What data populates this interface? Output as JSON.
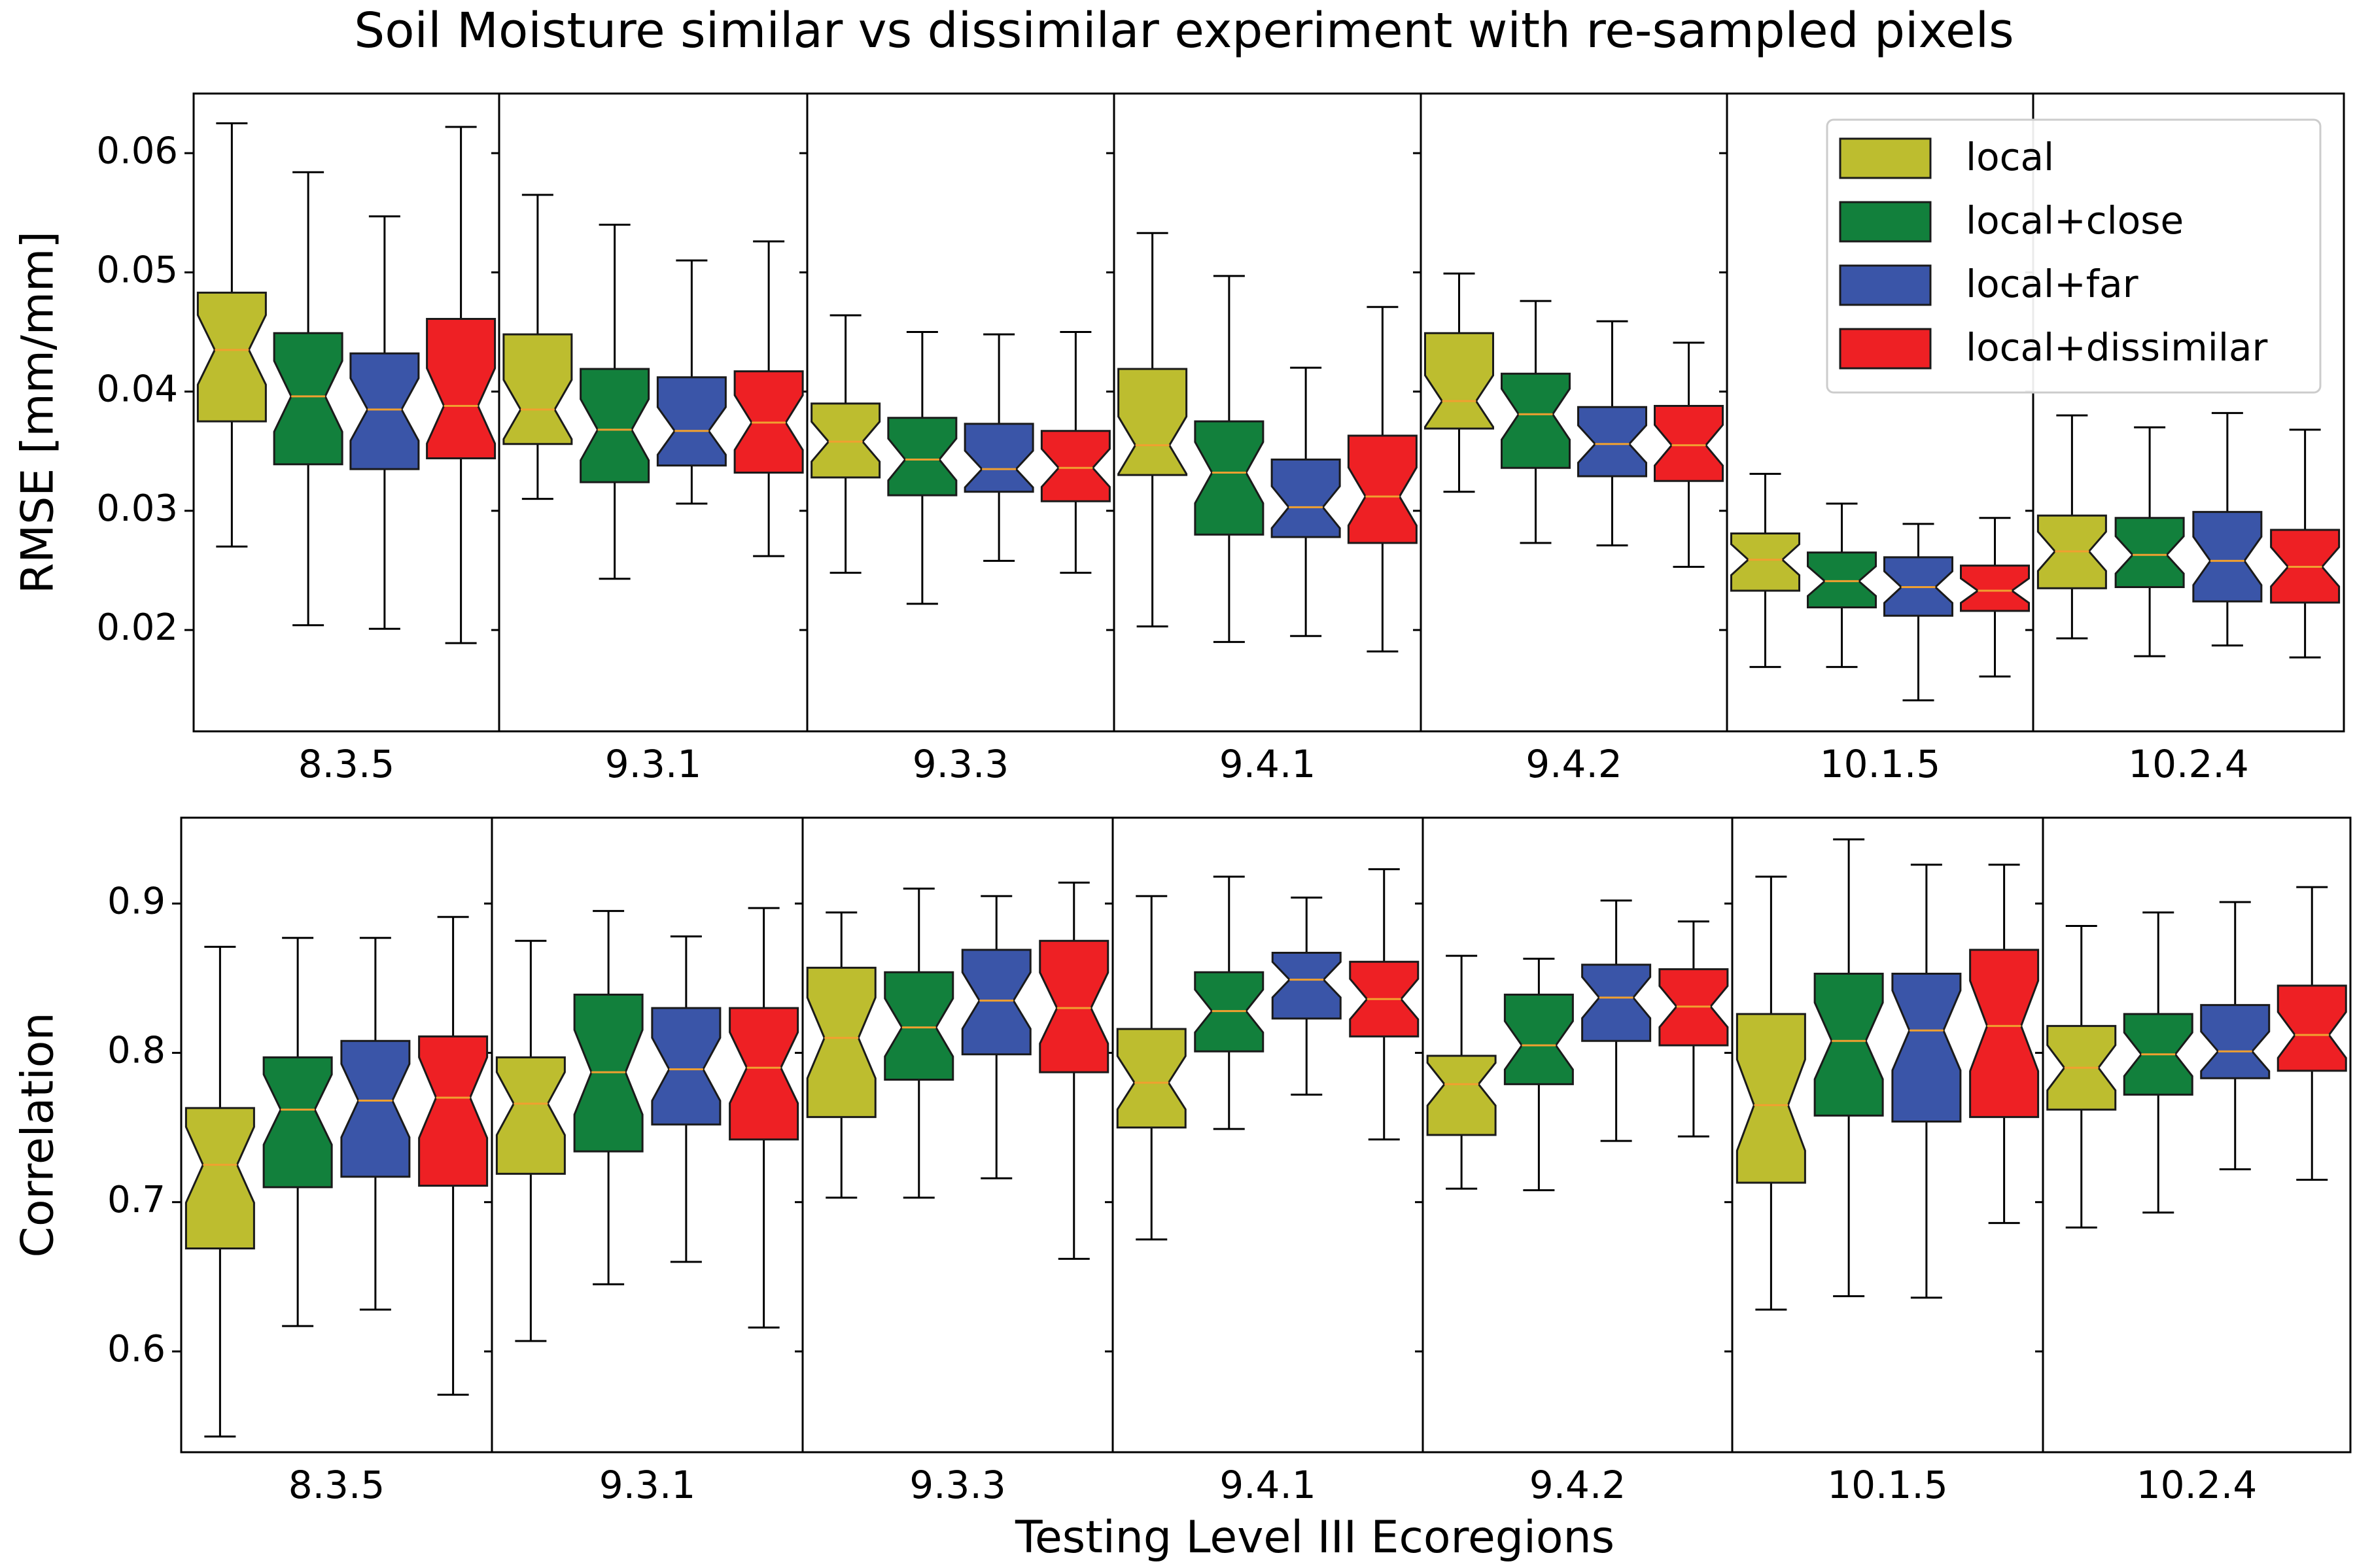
{
  "title": "Soil Moisture similar vs dissimilar experiment with re-sampled pixels",
  "xlabel": "Testing Level III Ecoregions",
  "legend": {
    "entries": [
      {
        "name": "local",
        "color": "#bdbd2f"
      },
      {
        "name": "local+close",
        "color": "#12803c"
      },
      {
        "name": "local+far",
        "color": "#3a55a8"
      },
      {
        "name": "local+dissimilar",
        "color": "#ee2024"
      }
    ]
  },
  "median_color": "#f0a030",
  "chart_data": [
    {
      "type": "boxplot",
      "ylabel": "RMSE [mm/mm]",
      "ylim": [
        0.0115,
        0.065
      ],
      "yticks": [
        0.02,
        0.03,
        0.04,
        0.05,
        0.06
      ],
      "ytick_labels": [
        "0.02",
        "0.03",
        "0.04",
        "0.05",
        "0.06"
      ],
      "categories": [
        "8.3.5",
        "9.3.1",
        "9.3.3",
        "9.4.1",
        "9.4.2",
        "10.1.5",
        "10.2.4"
      ],
      "series": [
        {
          "name": "local",
          "boxes": [
            {
              "min": 0.027,
              "q1": 0.0375,
              "median": 0.0435,
              "q3": 0.0483,
              "max": 0.0625
            },
            {
              "min": 0.031,
              "q1": 0.0356,
              "median": 0.0385,
              "q3": 0.0448,
              "max": 0.0565
            },
            {
              "min": 0.0248,
              "q1": 0.0328,
              "median": 0.0358,
              "q3": 0.039,
              "max": 0.0464
            },
            {
              "min": 0.0203,
              "q1": 0.033,
              "median": 0.0355,
              "q3": 0.0419,
              "max": 0.0533
            },
            {
              "min": 0.0316,
              "q1": 0.0369,
              "median": 0.0392,
              "q3": 0.0449,
              "max": 0.0499
            },
            {
              "min": 0.0169,
              "q1": 0.0233,
              "median": 0.0259,
              "q3": 0.0281,
              "max": 0.0331
            },
            {
              "min": 0.0193,
              "q1": 0.0235,
              "median": 0.0266,
              "q3": 0.0296,
              "max": 0.038
            }
          ]
        },
        {
          "name": "local+close",
          "boxes": [
            {
              "min": 0.0204,
              "q1": 0.0339,
              "median": 0.0396,
              "q3": 0.0449,
              "max": 0.0584
            },
            {
              "min": 0.0243,
              "q1": 0.0324,
              "median": 0.0368,
              "q3": 0.0419,
              "max": 0.054
            },
            {
              "min": 0.0222,
              "q1": 0.0313,
              "median": 0.0343,
              "q3": 0.0378,
              "max": 0.045
            },
            {
              "min": 0.019,
              "q1": 0.028,
              "median": 0.0332,
              "q3": 0.0375,
              "max": 0.0497
            },
            {
              "min": 0.0273,
              "q1": 0.0336,
              "median": 0.0381,
              "q3": 0.0415,
              "max": 0.0476
            },
            {
              "min": 0.0169,
              "q1": 0.0219,
              "median": 0.0241,
              "q3": 0.0265,
              "max": 0.0306
            },
            {
              "min": 0.0178,
              "q1": 0.0236,
              "median": 0.0263,
              "q3": 0.0294,
              "max": 0.037
            }
          ]
        },
        {
          "name": "local+far",
          "boxes": [
            {
              "min": 0.0201,
              "q1": 0.0335,
              "median": 0.0385,
              "q3": 0.0432,
              "max": 0.0547
            },
            {
              "min": 0.0306,
              "q1": 0.0338,
              "median": 0.0367,
              "q3": 0.0412,
              "max": 0.051
            },
            {
              "min": 0.0258,
              "q1": 0.0316,
              "median": 0.0335,
              "q3": 0.0373,
              "max": 0.0448
            },
            {
              "min": 0.0195,
              "q1": 0.0278,
              "median": 0.0303,
              "q3": 0.0343,
              "max": 0.042
            },
            {
              "min": 0.0271,
              "q1": 0.0329,
              "median": 0.0356,
              "q3": 0.0387,
              "max": 0.0459
            },
            {
              "min": 0.0141,
              "q1": 0.0212,
              "median": 0.0236,
              "q3": 0.0261,
              "max": 0.0289
            },
            {
              "min": 0.0187,
              "q1": 0.0224,
              "median": 0.0258,
              "q3": 0.0299,
              "max": 0.0382
            }
          ]
        },
        {
          "name": "local+dissimilar",
          "boxes": [
            {
              "min": 0.0189,
              "q1": 0.0344,
              "median": 0.0388,
              "q3": 0.0461,
              "max": 0.0622
            },
            {
              "min": 0.0262,
              "q1": 0.0332,
              "median": 0.0374,
              "q3": 0.0417,
              "max": 0.0526
            },
            {
              "min": 0.0248,
              "q1": 0.0308,
              "median": 0.0336,
              "q3": 0.0367,
              "max": 0.045
            },
            {
              "min": 0.0182,
              "q1": 0.0273,
              "median": 0.0312,
              "q3": 0.0363,
              "max": 0.0471
            },
            {
              "min": 0.0253,
              "q1": 0.0325,
              "median": 0.0355,
              "q3": 0.0388,
              "max": 0.0441
            },
            {
              "min": 0.0161,
              "q1": 0.0216,
              "median": 0.0233,
              "q3": 0.0254,
              "max": 0.0294
            },
            {
              "min": 0.0177,
              "q1": 0.0223,
              "median": 0.0253,
              "q3": 0.0284,
              "max": 0.0368
            }
          ]
        }
      ]
    },
    {
      "type": "boxplot",
      "ylabel": "Correlation",
      "ylim": [
        0.5325,
        0.9575
      ],
      "yticks": [
        0.6,
        0.7,
        0.8,
        0.9
      ],
      "ytick_labels": [
        "0.6",
        "0.7",
        "0.8",
        "0.9"
      ],
      "categories": [
        "8.3.5",
        "9.3.1",
        "9.3.3",
        "9.4.1",
        "9.4.2",
        "10.1.5",
        "10.2.4"
      ],
      "series": [
        {
          "name": "local",
          "boxes": [
            {
              "min": 0.543,
              "q1": 0.669,
              "median": 0.725,
              "q3": 0.763,
              "max": 0.871
            },
            {
              "min": 0.607,
              "q1": 0.719,
              "median": 0.766,
              "q3": 0.797,
              "max": 0.875
            },
            {
              "min": 0.703,
              "q1": 0.757,
              "median": 0.81,
              "q3": 0.857,
              "max": 0.894
            },
            {
              "min": 0.675,
              "q1": 0.75,
              "median": 0.78,
              "q3": 0.816,
              "max": 0.905
            },
            {
              "min": 0.709,
              "q1": 0.745,
              "median": 0.779,
              "q3": 0.798,
              "max": 0.865
            },
            {
              "min": 0.628,
              "q1": 0.713,
              "median": 0.765,
              "q3": 0.826,
              "max": 0.918
            },
            {
              "min": 0.683,
              "q1": 0.762,
              "median": 0.79,
              "q3": 0.818,
              "max": 0.885
            }
          ]
        },
        {
          "name": "local+close",
          "boxes": [
            {
              "min": 0.617,
              "q1": 0.71,
              "median": 0.762,
              "q3": 0.797,
              "max": 0.877
            },
            {
              "min": 0.645,
              "q1": 0.734,
              "median": 0.787,
              "q3": 0.839,
              "max": 0.895
            },
            {
              "min": 0.703,
              "q1": 0.782,
              "median": 0.817,
              "q3": 0.854,
              "max": 0.91
            },
            {
              "min": 0.749,
              "q1": 0.801,
              "median": 0.828,
              "q3": 0.854,
              "max": 0.918
            },
            {
              "min": 0.708,
              "q1": 0.779,
              "median": 0.805,
              "q3": 0.839,
              "max": 0.863
            },
            {
              "min": 0.637,
              "q1": 0.758,
              "median": 0.808,
              "q3": 0.853,
              "max": 0.943
            },
            {
              "min": 0.693,
              "q1": 0.772,
              "median": 0.799,
              "q3": 0.826,
              "max": 0.894
            }
          ]
        },
        {
          "name": "local+far",
          "boxes": [
            {
              "min": 0.628,
              "q1": 0.717,
              "median": 0.768,
              "q3": 0.808,
              "max": 0.877
            },
            {
              "min": 0.66,
              "q1": 0.752,
              "median": 0.789,
              "q3": 0.83,
              "max": 0.878
            },
            {
              "min": 0.716,
              "q1": 0.799,
              "median": 0.835,
              "q3": 0.869,
              "max": 0.905
            },
            {
              "min": 0.772,
              "q1": 0.823,
              "median": 0.849,
              "q3": 0.867,
              "max": 0.904
            },
            {
              "min": 0.741,
              "q1": 0.808,
              "median": 0.837,
              "q3": 0.859,
              "max": 0.902
            },
            {
              "min": 0.636,
              "q1": 0.754,
              "median": 0.815,
              "q3": 0.853,
              "max": 0.926
            },
            {
              "min": 0.722,
              "q1": 0.783,
              "median": 0.801,
              "q3": 0.832,
              "max": 0.901
            }
          ]
        },
        {
          "name": "local+dissimilar",
          "boxes": [
            {
              "min": 0.571,
              "q1": 0.711,
              "median": 0.77,
              "q3": 0.811,
              "max": 0.891
            },
            {
              "min": 0.616,
              "q1": 0.742,
              "median": 0.79,
              "q3": 0.83,
              "max": 0.897
            },
            {
              "min": 0.662,
              "q1": 0.787,
              "median": 0.83,
              "q3": 0.875,
              "max": 0.914
            },
            {
              "min": 0.742,
              "q1": 0.811,
              "median": 0.836,
              "q3": 0.861,
              "max": 0.923
            },
            {
              "min": 0.744,
              "q1": 0.805,
              "median": 0.831,
              "q3": 0.856,
              "max": 0.888
            },
            {
              "min": 0.686,
              "q1": 0.757,
              "median": 0.818,
              "q3": 0.869,
              "max": 0.926
            },
            {
              "min": 0.715,
              "q1": 0.788,
              "median": 0.812,
              "q3": 0.845,
              "max": 0.911
            }
          ]
        }
      ]
    }
  ]
}
